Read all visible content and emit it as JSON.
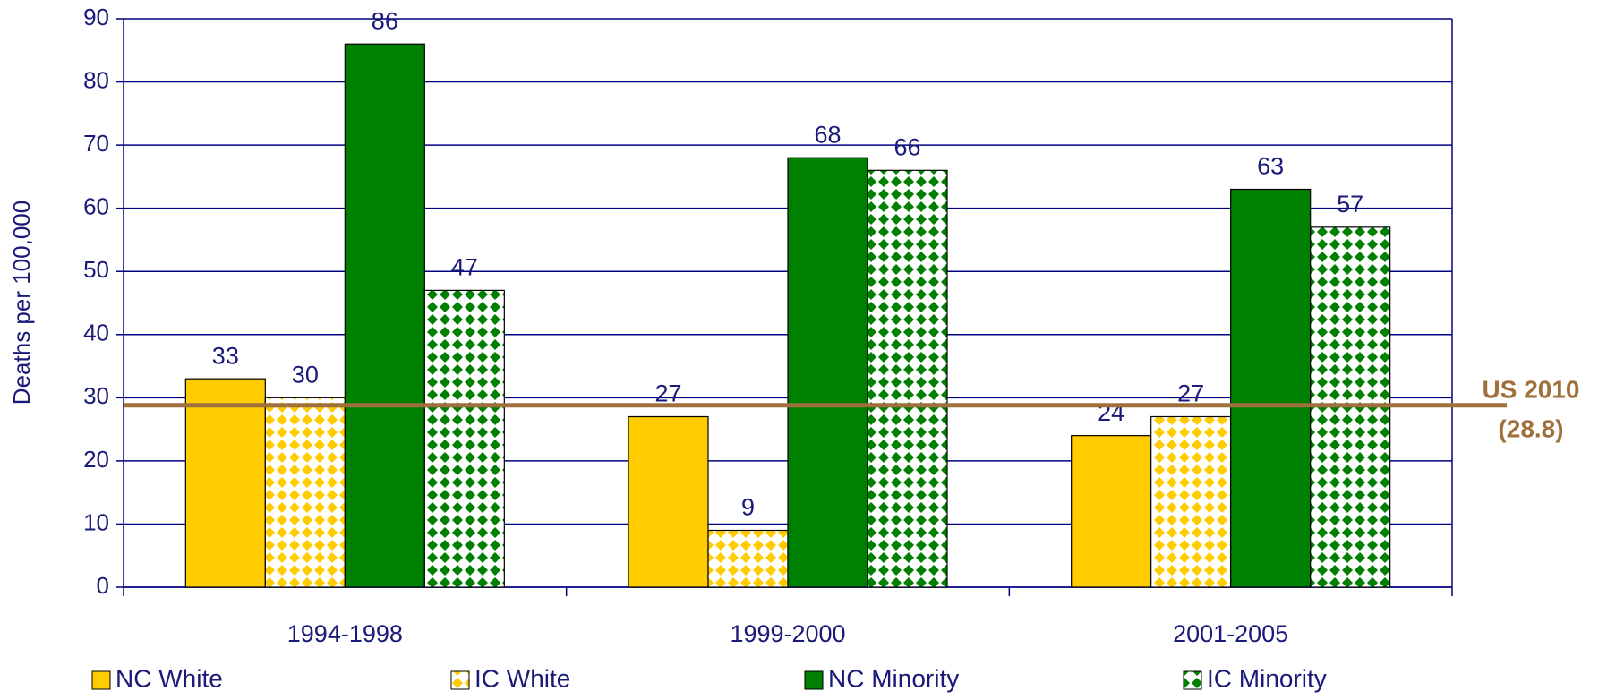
{
  "chart_data": {
    "type": "bar",
    "y_label": "Deaths per 100,000",
    "categories": [
      "1994-1998",
      "1999-2000",
      "2001-2005"
    ],
    "series": [
      {
        "name": "NC White",
        "color": "#ffcc00",
        "pattern": false,
        "values": [
          33,
          27,
          24
        ]
      },
      {
        "name": "IC White",
        "color": "#ffcc00",
        "pattern": true,
        "values": [
          30,
          9,
          27
        ]
      },
      {
        "name": "NC Minority",
        "color": "#008000",
        "pattern": false,
        "values": [
          86,
          68,
          63
        ]
      },
      {
        "name": "IC Minority",
        "color": "#008000",
        "pattern": true,
        "values": [
          47,
          66,
          57
        ]
      }
    ],
    "ylim": [
      0,
      90
    ],
    "yticks": [
      0,
      10,
      20,
      30,
      40,
      50,
      60,
      70,
      80,
      90
    ],
    "grid": true,
    "reference": {
      "label": "US 2010",
      "value": 28.8,
      "value_label": "(28.8)",
      "color": "#a0703c"
    },
    "legend": "bottom"
  }
}
